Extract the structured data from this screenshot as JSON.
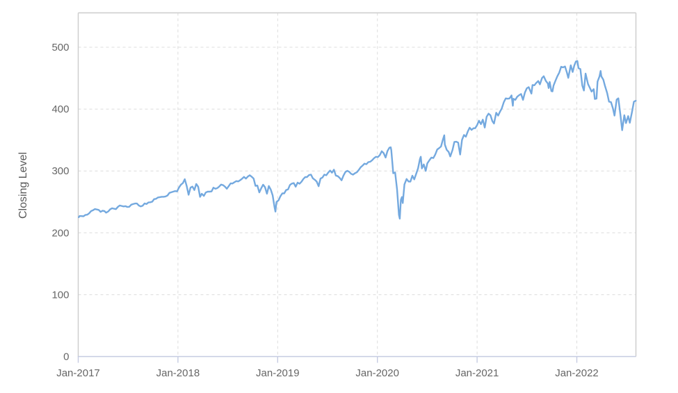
{
  "colors": {
    "line": "#74a9df",
    "grid": "#dcdcdc",
    "border": "#cccccc",
    "axis_line": "#c5cbe1",
    "tick_text": "#666666",
    "background": "#ffffff"
  },
  "chart_data": {
    "type": "line",
    "title": "",
    "xlabel": "",
    "ylabel": "Closing Level",
    "legend": "none",
    "grid": "dashed",
    "y_axis": {
      "ticks": [
        0,
        100,
        200,
        300,
        400,
        500
      ],
      "range": [
        0,
        555
      ]
    },
    "x_axis": {
      "tick_years": [
        2017,
        2018,
        2019,
        2020,
        2021,
        2022
      ],
      "tick_labels": [
        "Jan-2017",
        "Jan-2018",
        "Jan-2019",
        "Jan-2020",
        "Jan-2021",
        "Jan-2022"
      ],
      "range_years": [
        2017.0,
        2022.6
      ]
    },
    "points": [
      [
        "2017-01-03",
        225.2
      ],
      [
        "2017-01-06",
        227.2
      ],
      [
        "2017-01-13",
        227.1
      ],
      [
        "2017-01-20",
        226.7
      ],
      [
        "2017-01-27",
        228.8
      ],
      [
        "2017-02-03",
        229.3
      ],
      [
        "2017-02-10",
        231.5
      ],
      [
        "2017-02-17",
        235.1
      ],
      [
        "2017-02-24",
        236.5
      ],
      [
        "2017-03-03",
        238.4
      ],
      [
        "2017-03-10",
        237.7
      ],
      [
        "2017-03-17",
        237.0
      ],
      [
        "2017-03-24",
        233.9
      ],
      [
        "2017-03-31",
        235.7
      ],
      [
        "2017-04-07",
        235.2
      ],
      [
        "2017-04-13",
        232.5
      ],
      [
        "2017-04-21",
        234.6
      ],
      [
        "2017-04-28",
        238.1
      ],
      [
        "2017-05-05",
        239.7
      ],
      [
        "2017-05-12",
        238.9
      ],
      [
        "2017-05-19",
        238.3
      ],
      [
        "2017-05-26",
        241.7
      ],
      [
        "2017-06-02",
        244.2
      ],
      [
        "2017-06-09",
        243.4
      ],
      [
        "2017-06-16",
        242.6
      ],
      [
        "2017-06-23",
        243.1
      ],
      [
        "2017-06-30",
        241.8
      ],
      [
        "2017-07-07",
        242.1
      ],
      [
        "2017-07-14",
        245.5
      ],
      [
        "2017-07-21",
        246.5
      ],
      [
        "2017-07-28",
        247.4
      ],
      [
        "2017-08-04",
        247.4
      ],
      [
        "2017-08-11",
        244.1
      ],
      [
        "2017-08-18",
        242.7
      ],
      [
        "2017-08-25",
        243.9
      ],
      [
        "2017-09-01",
        247.5
      ],
      [
        "2017-09-08",
        246.6
      ],
      [
        "2017-09-15",
        249.0
      ],
      [
        "2017-09-22",
        249.4
      ],
      [
        "2017-09-29",
        250.3
      ],
      [
        "2017-10-06",
        254.4
      ],
      [
        "2017-10-13",
        255.0
      ],
      [
        "2017-10-20",
        257.1
      ],
      [
        "2017-10-27",
        257.7
      ],
      [
        "2017-11-03",
        258.3
      ],
      [
        "2017-11-10",
        258.3
      ],
      [
        "2017-11-17",
        258.8
      ],
      [
        "2017-11-24",
        260.4
      ],
      [
        "2017-12-01",
        264.5
      ],
      [
        "2017-12-08",
        265.5
      ],
      [
        "2017-12-15",
        266.5
      ],
      [
        "2017-12-22",
        267.5
      ],
      [
        "2017-12-29",
        266.9
      ],
      [
        "2018-01-05",
        273.4
      ],
      [
        "2018-01-12",
        277.9
      ],
      [
        "2018-01-19",
        280.4
      ],
      [
        "2018-01-26",
        286.6
      ],
      [
        "2018-02-02",
        275.5
      ],
      [
        "2018-02-09",
        261.5
      ],
      [
        "2018-02-16",
        273.1
      ],
      [
        "2018-02-23",
        274.7
      ],
      [
        "2018-03-02",
        269.1
      ],
      [
        "2018-03-09",
        278.9
      ],
      [
        "2018-03-16",
        274.4
      ],
      [
        "2018-03-23",
        258.1
      ],
      [
        "2018-03-29",
        263.2
      ],
      [
        "2018-04-06",
        259.7
      ],
      [
        "2018-04-13",
        265.2
      ],
      [
        "2018-04-20",
        266.6
      ],
      [
        "2018-04-27",
        266.6
      ],
      [
        "2018-05-04",
        266.9
      ],
      [
        "2018-05-11",
        272.9
      ],
      [
        "2018-05-18",
        271.3
      ],
      [
        "2018-05-25",
        272.2
      ],
      [
        "2018-06-01",
        274.8
      ],
      [
        "2018-06-08",
        278.0
      ],
      [
        "2018-06-15",
        277.1
      ],
      [
        "2018-06-22",
        274.7
      ],
      [
        "2018-06-29",
        271.3
      ],
      [
        "2018-07-06",
        275.4
      ],
      [
        "2018-07-13",
        279.9
      ],
      [
        "2018-07-20",
        279.7
      ],
      [
        "2018-07-27",
        281.8
      ],
      [
        "2018-08-03",
        283.6
      ],
      [
        "2018-08-10",
        283.1
      ],
      [
        "2018-08-17",
        285.1
      ],
      [
        "2018-08-24",
        287.5
      ],
      [
        "2018-08-31",
        290.3
      ],
      [
        "2018-09-07",
        287.6
      ],
      [
        "2018-09-14",
        290.9
      ],
      [
        "2018-09-21",
        293.0
      ],
      [
        "2018-09-28",
        290.7
      ],
      [
        "2018-10-05",
        287.8
      ],
      [
        "2018-10-12",
        275.9
      ],
      [
        "2018-10-19",
        276.4
      ],
      [
        "2018-10-26",
        265.3
      ],
      [
        "2018-11-02",
        271.9
      ],
      [
        "2018-11-09",
        277.8
      ],
      [
        "2018-11-16",
        273.7
      ],
      [
        "2018-11-23",
        263.2
      ],
      [
        "2018-11-30",
        275.7
      ],
      [
        "2018-12-07",
        269.8
      ],
      [
        "2018-12-14",
        260.5
      ],
      [
        "2018-12-21",
        240.7
      ],
      [
        "2018-12-24",
        234.3
      ],
      [
        "2018-12-28",
        249.9
      ],
      [
        "2019-01-04",
        252.4
      ],
      [
        "2019-01-11",
        259.0
      ],
      [
        "2019-01-18",
        263.8
      ],
      [
        "2019-01-25",
        263.8
      ],
      [
        "2019-02-01",
        269.3
      ],
      [
        "2019-02-08",
        270.1
      ],
      [
        "2019-02-15",
        277.4
      ],
      [
        "2019-02-22",
        279.6
      ],
      [
        "2019-03-01",
        280.4
      ],
      [
        "2019-03-08",
        274.5
      ],
      [
        "2019-03-15",
        281.2
      ],
      [
        "2019-03-22",
        279.3
      ],
      [
        "2019-03-29",
        282.5
      ],
      [
        "2019-04-05",
        287.0
      ],
      [
        "2019-04-12",
        290.2
      ],
      [
        "2019-04-18",
        290.0
      ],
      [
        "2019-04-26",
        293.4
      ],
      [
        "2019-05-03",
        294.0
      ],
      [
        "2019-05-10",
        288.1
      ],
      [
        "2019-05-17",
        285.8
      ],
      [
        "2019-05-24",
        282.8
      ],
      [
        "2019-05-31",
        275.3
      ],
      [
        "2019-06-07",
        287.6
      ],
      [
        "2019-06-14",
        289.3
      ],
      [
        "2019-06-21",
        294.0
      ],
      [
        "2019-06-28",
        293.0
      ],
      [
        "2019-07-05",
        297.2
      ],
      [
        "2019-07-12",
        300.7
      ],
      [
        "2019-07-19",
        297.2
      ],
      [
        "2019-07-26",
        302.0
      ],
      [
        "2019-08-02",
        292.6
      ],
      [
        "2019-08-09",
        291.6
      ],
      [
        "2019-08-16",
        288.9
      ],
      [
        "2019-08-23",
        284.8
      ],
      [
        "2019-08-30",
        292.5
      ],
      [
        "2019-09-06",
        298.3
      ],
      [
        "2019-09-13",
        300.2
      ],
      [
        "2019-09-20",
        298.7
      ],
      [
        "2019-09-27",
        295.4
      ],
      [
        "2019-10-04",
        294.1
      ],
      [
        "2019-10-11",
        296.3
      ],
      [
        "2019-10-18",
        297.9
      ],
      [
        "2019-10-25",
        301.6
      ],
      [
        "2019-11-01",
        306.1
      ],
      [
        "2019-11-08",
        308.6
      ],
      [
        "2019-11-15",
        311.8
      ],
      [
        "2019-11-22",
        310.9
      ],
      [
        "2019-11-29",
        314.3
      ],
      [
        "2019-12-06",
        314.9
      ],
      [
        "2019-12-13",
        317.3
      ],
      [
        "2019-12-20",
        320.7
      ],
      [
        "2019-12-27",
        322.9
      ],
      [
        "2020-01-03",
        322.4
      ],
      [
        "2020-01-10",
        325.7
      ],
      [
        "2020-01-17",
        331.9
      ],
      [
        "2020-01-24",
        328.8
      ],
      [
        "2020-01-31",
        321.7
      ],
      [
        "2020-02-07",
        332.2
      ],
      [
        "2020-02-14",
        337.6
      ],
      [
        "2020-02-19",
        338.3
      ],
      [
        "2020-02-21",
        333.5
      ],
      [
        "2020-02-28",
        296.3
      ],
      [
        "2020-03-06",
        297.5
      ],
      [
        "2020-03-13",
        270.0
      ],
      [
        "2020-03-20",
        228.8
      ],
      [
        "2020-03-23",
        222.9
      ],
      [
        "2020-03-27",
        253.4
      ],
      [
        "2020-03-31",
        257.8
      ],
      [
        "2020-04-03",
        248.2
      ],
      [
        "2020-04-09",
        278.2
      ],
      [
        "2020-04-17",
        287.0
      ],
      [
        "2020-04-24",
        282.9
      ],
      [
        "2020-05-01",
        282.8
      ],
      [
        "2020-05-08",
        292.4
      ],
      [
        "2020-05-15",
        286.3
      ],
      [
        "2020-05-22",
        295.4
      ],
      [
        "2020-05-29",
        304.3
      ],
      [
        "2020-06-05",
        319.3
      ],
      [
        "2020-06-08",
        323.0
      ],
      [
        "2020-06-12",
        304.2
      ],
      [
        "2020-06-19",
        310.6
      ],
      [
        "2020-06-26",
        300.1
      ],
      [
        "2020-07-02",
        312.2
      ],
      [
        "2020-07-10",
        317.6
      ],
      [
        "2020-07-17",
        321.7
      ],
      [
        "2020-07-24",
        320.9
      ],
      [
        "2020-07-31",
        326.5
      ],
      [
        "2020-08-07",
        334.6
      ],
      [
        "2020-08-14",
        336.8
      ],
      [
        "2020-08-21",
        339.5
      ],
      [
        "2020-08-28",
        350.6
      ],
      [
        "2020-09-02",
        357.7
      ],
      [
        "2020-09-04",
        342.6
      ],
      [
        "2020-09-11",
        334.1
      ],
      [
        "2020-09-18",
        330.7
      ],
      [
        "2020-09-24",
        323.5
      ],
      [
        "2020-10-02",
        333.8
      ],
      [
        "2020-10-09",
        346.9
      ],
      [
        "2020-10-16",
        347.3
      ],
      [
        "2020-10-23",
        345.8
      ],
      [
        "2020-10-30",
        326.5
      ],
      [
        "2020-11-06",
        350.2
      ],
      [
        "2020-11-13",
        358.1
      ],
      [
        "2020-11-20",
        355.3
      ],
      [
        "2020-11-27",
        363.7
      ],
      [
        "2020-12-04",
        369.9
      ],
      [
        "2020-12-11",
        366.3
      ],
      [
        "2020-12-18",
        369.0
      ],
      [
        "2020-12-24",
        369.0
      ],
      [
        "2020-12-31",
        373.9
      ],
      [
        "2021-01-08",
        381.3
      ],
      [
        "2021-01-15",
        375.7
      ],
      [
        "2021-01-22",
        382.9
      ],
      [
        "2021-01-29",
        370.1
      ],
      [
        "2021-02-05",
        387.7
      ],
      [
        "2021-02-12",
        392.6
      ],
      [
        "2021-02-19",
        390.0
      ],
      [
        "2021-02-26",
        380.4
      ],
      [
        "2021-03-04",
        376.7
      ],
      [
        "2021-03-12",
        394.1
      ],
      [
        "2021-03-19",
        389.5
      ],
      [
        "2021-03-26",
        396.0
      ],
      [
        "2021-04-01",
        400.6
      ],
      [
        "2021-04-09",
        411.5
      ],
      [
        "2021-04-16",
        417.3
      ],
      [
        "2021-04-23",
        416.7
      ],
      [
        "2021-04-30",
        417.3
      ],
      [
        "2021-05-07",
        422.1
      ],
      [
        "2021-05-12",
        405.4
      ],
      [
        "2021-05-14",
        416.6
      ],
      [
        "2021-05-21",
        414.9
      ],
      [
        "2021-05-28",
        420.0
      ],
      [
        "2021-06-04",
        422.6
      ],
      [
        "2021-06-11",
        424.3
      ],
      [
        "2021-06-18",
        414.9
      ],
      [
        "2021-06-25",
        426.6
      ],
      [
        "2021-07-02",
        433.7
      ],
      [
        "2021-07-09",
        435.5
      ],
      [
        "2021-07-19",
        425.0
      ],
      [
        "2021-07-23",
        439.0
      ],
      [
        "2021-07-30",
        438.5
      ],
      [
        "2021-08-06",
        442.5
      ],
      [
        "2021-08-13",
        445.3
      ],
      [
        "2021-08-19",
        439.9
      ],
      [
        "2021-08-27",
        450.3
      ],
      [
        "2021-09-02",
        453.1
      ],
      [
        "2021-09-10",
        445.4
      ],
      [
        "2021-09-17",
        441.4
      ],
      [
        "2021-09-20",
        434.0
      ],
      [
        "2021-09-24",
        443.9
      ],
      [
        "2021-09-30",
        429.1
      ],
      [
        "2021-10-04",
        428.6
      ],
      [
        "2021-10-08",
        437.9
      ],
      [
        "2021-10-15",
        445.9
      ],
      [
        "2021-10-22",
        453.1
      ],
      [
        "2021-10-29",
        459.2
      ],
      [
        "2021-11-05",
        468.5
      ],
      [
        "2021-11-12",
        467.3
      ],
      [
        "2021-11-19",
        468.9
      ],
      [
        "2021-11-26",
        458.8
      ],
      [
        "2021-12-01",
        450.5
      ],
      [
        "2021-12-10",
        470.7
      ],
      [
        "2021-12-17",
        459.9
      ],
      [
        "2021-12-23",
        470.6
      ],
      [
        "2021-12-29",
        477.0
      ],
      [
        "2022-01-03",
        477.7
      ],
      [
        "2022-01-07",
        466.1
      ],
      [
        "2022-01-14",
        464.7
      ],
      [
        "2022-01-21",
        437.9
      ],
      [
        "2022-01-27",
        430.0
      ],
      [
        "2022-02-02",
        457.4
      ],
      [
        "2022-02-11",
        440.5
      ],
      [
        "2022-02-18",
        434.2
      ],
      [
        "2022-02-24",
        428.3
      ],
      [
        "2022-03-04",
        432.2
      ],
      [
        "2022-03-08",
        416.3
      ],
      [
        "2022-03-14",
        417.0
      ],
      [
        "2022-03-18",
        444.5
      ],
      [
        "2022-03-25",
        452.7
      ],
      [
        "2022-03-29",
        461.6
      ],
      [
        "2022-04-01",
        452.9
      ],
      [
        "2022-04-08",
        447.6
      ],
      [
        "2022-04-14",
        437.8
      ],
      [
        "2022-04-22",
        426.0
      ],
      [
        "2022-04-29",
        412.0
      ],
      [
        "2022-05-06",
        411.3
      ],
      [
        "2022-05-13",
        401.7
      ],
      [
        "2022-05-19",
        389.5
      ],
      [
        "2022-05-27",
        415.3
      ],
      [
        "2022-06-02",
        417.4
      ],
      [
        "2022-06-10",
        389.8
      ],
      [
        "2022-06-16",
        365.9
      ],
      [
        "2022-06-24",
        390.1
      ],
      [
        "2022-06-30",
        377.3
      ],
      [
        "2022-07-08",
        388.7
      ],
      [
        "2022-07-14",
        377.9
      ],
      [
        "2022-07-22",
        395.1
      ],
      [
        "2022-07-29",
        412.0
      ],
      [
        "2022-08-05",
        413.5
      ]
    ]
  }
}
